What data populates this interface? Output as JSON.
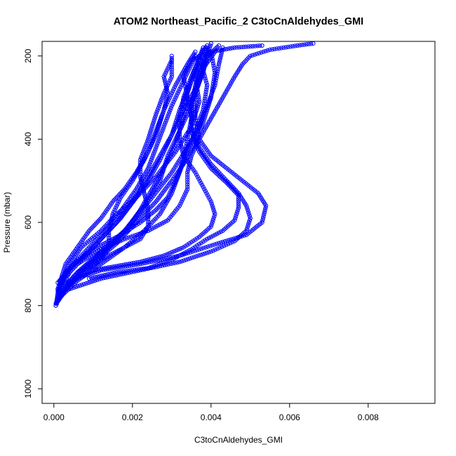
{
  "chart_data": {
    "type": "scatter",
    "title": "ATOM2 Northeast_Pacific_2 C3toCnAldehydes_GMI",
    "xlabel": "C3toCnAldehydes_GMI",
    "ylabel": "Pressure (mbar)",
    "xlim": [
      -0.0003,
      0.0097
    ],
    "ylim": [
      1035,
      165
    ],
    "y_reversed": true,
    "grid": false,
    "legend": "none",
    "marker": "open-circle",
    "color": "#0000ff",
    "xticks": [
      0.0,
      0.002,
      0.004,
      0.006,
      0.008
    ],
    "xtick_labels": [
      "0.000",
      "0.002",
      "0.004",
      "0.006",
      "0.008"
    ],
    "yticks": [
      200,
      400,
      600,
      800,
      1000
    ],
    "ytick_labels": [
      "200",
      "400",
      "600",
      "800",
      "1000"
    ],
    "series": [
      {
        "points": [
          [
            5e-05,
            800
          ],
          [
            0.0002,
            770
          ],
          [
            0.0006,
            720
          ],
          [
            0.0012,
            670
          ],
          [
            0.0018,
            620
          ],
          [
            0.0023,
            560
          ],
          [
            0.0027,
            500
          ],
          [
            0.0029,
            440
          ],
          [
            0.0031,
            400
          ],
          [
            0.0034,
            340
          ],
          [
            0.0036,
            290
          ],
          [
            0.0038,
            240
          ],
          [
            0.0039,
            200
          ],
          [
            0.004,
            170
          ]
        ]
      },
      {
        "points": [
          [
            5e-05,
            795
          ],
          [
            0.0003,
            760
          ],
          [
            0.0008,
            710
          ],
          [
            0.0014,
            660
          ],
          [
            0.002,
            600
          ],
          [
            0.0025,
            540
          ],
          [
            0.003,
            480
          ],
          [
            0.0034,
            420
          ],
          [
            0.0037,
            370
          ],
          [
            0.0039,
            320
          ],
          [
            0.0041,
            270
          ],
          [
            0.0042,
            220
          ],
          [
            0.0043,
            180
          ]
        ]
      },
      {
        "points": [
          [
            0.0001,
            790
          ],
          [
            0.0004,
            750
          ],
          [
            0.001,
            700
          ],
          [
            0.0016,
            650
          ],
          [
            0.0021,
            600
          ],
          [
            0.0026,
            550
          ],
          [
            0.003,
            500
          ],
          [
            0.0033,
            460
          ],
          [
            0.0036,
            410
          ],
          [
            0.0038,
            360
          ],
          [
            0.004,
            300
          ],
          [
            0.0041,
            240
          ],
          [
            0.004,
            190
          ]
        ]
      },
      {
        "points": [
          [
            0.0001,
            785
          ],
          [
            0.0006,
            740
          ],
          [
            0.0012,
            700
          ],
          [
            0.0018,
            660
          ],
          [
            0.0023,
            620
          ],
          [
            0.0027,
            580
          ],
          [
            0.003,
            530
          ],
          [
            0.0032,
            480
          ],
          [
            0.0034,
            430
          ],
          [
            0.0036,
            380
          ],
          [
            0.0038,
            330
          ],
          [
            0.0039,
            270
          ],
          [
            0.0037,
            200
          ]
        ]
      },
      {
        "points": [
          [
            0.0001,
            780
          ],
          [
            0.0005,
            730
          ],
          [
            0.001,
            690
          ],
          [
            0.0015,
            650
          ],
          [
            0.0019,
            610
          ],
          [
            0.0022,
            570
          ],
          [
            0.0025,
            520
          ],
          [
            0.0028,
            470
          ],
          [
            0.0031,
            410
          ],
          [
            0.0033,
            350
          ],
          [
            0.0034,
            290
          ],
          [
            0.0036,
            230
          ],
          [
            0.0038,
            180
          ]
        ]
      },
      {
        "points": [
          [
            0.0001,
            775
          ],
          [
            0.0004,
            720
          ],
          [
            0.0008,
            680
          ],
          [
            0.0012,
            640
          ],
          [
            0.0016,
            600
          ],
          [
            0.002,
            550
          ],
          [
            0.0024,
            500
          ],
          [
            0.0027,
            450
          ],
          [
            0.003,
            390
          ],
          [
            0.0032,
            330
          ],
          [
            0.0035,
            260
          ],
          [
            0.0038,
            210
          ],
          [
            0.0042,
            175
          ]
        ]
      },
      {
        "points": [
          [
            0.0001,
            770
          ],
          [
            0.0003,
            720
          ],
          [
            0.0007,
            680
          ],
          [
            0.0011,
            640
          ],
          [
            0.0015,
            600
          ],
          [
            0.0018,
            560
          ],
          [
            0.0021,
            520
          ],
          [
            0.0024,
            470
          ],
          [
            0.0026,
            420
          ],
          [
            0.0028,
            370
          ],
          [
            0.003,
            320
          ],
          [
            0.0033,
            260
          ],
          [
            0.0036,
            200
          ]
        ]
      },
      {
        "points": [
          [
            0.0001,
            765
          ],
          [
            0.0004,
            710
          ],
          [
            0.0009,
            670
          ],
          [
            0.0013,
            630
          ],
          [
            0.0017,
            590
          ],
          [
            0.0021,
            540
          ],
          [
            0.0024,
            490
          ],
          [
            0.0027,
            440
          ],
          [
            0.003,
            390
          ],
          [
            0.0033,
            330
          ],
          [
            0.0036,
            280
          ],
          [
            0.0038,
            220
          ],
          [
            0.0039,
            180
          ]
        ]
      },
      {
        "points": [
          [
            0.0001,
            760
          ],
          [
            0.0003,
            700
          ],
          [
            0.0006,
            660
          ],
          [
            0.0009,
            620
          ],
          [
            0.0012,
            590
          ],
          [
            0.0015,
            550
          ],
          [
            0.0018,
            520
          ],
          [
            0.0021,
            480
          ],
          [
            0.0024,
            430
          ],
          [
            0.0026,
            380
          ],
          [
            0.0028,
            330
          ],
          [
            0.0031,
            270
          ],
          [
            0.0034,
            220
          ],
          [
            0.0036,
            190
          ]
        ]
      },
      {
        "points": [
          [
            0.0001,
            760
          ],
          [
            0.0004,
            740
          ],
          [
            0.0012,
            715
          ],
          [
            0.0022,
            700
          ],
          [
            0.0032,
            680
          ],
          [
            0.0042,
            650
          ],
          [
            0.0049,
            630
          ],
          [
            0.0053,
            600
          ],
          [
            0.0054,
            560
          ],
          [
            0.0052,
            530
          ],
          [
            0.0048,
            500
          ],
          [
            0.0044,
            470
          ],
          [
            0.004,
            440
          ],
          [
            0.0037,
            400
          ],
          [
            0.0036,
            350
          ],
          [
            0.0036,
            290
          ],
          [
            0.0038,
            230
          ],
          [
            0.0041,
            190
          ]
        ]
      },
      {
        "points": [
          [
            0.0004,
            760
          ],
          [
            0.0012,
            735
          ],
          [
            0.0022,
            715
          ],
          [
            0.0032,
            695
          ],
          [
            0.004,
            670
          ],
          [
            0.0046,
            645
          ],
          [
            0.0049,
            620
          ],
          [
            0.005,
            590
          ],
          [
            0.0049,
            560
          ],
          [
            0.0047,
            530
          ],
          [
            0.0044,
            500
          ],
          [
            0.004,
            460
          ],
          [
            0.0037,
            420
          ],
          [
            0.0035,
            370
          ],
          [
            0.0035,
            310
          ],
          [
            0.0037,
            260
          ],
          [
            0.0039,
            210
          ]
        ]
      },
      {
        "points": [
          [
            0.0009,
            735
          ],
          [
            0.0016,
            720
          ],
          [
            0.0024,
            710
          ],
          [
            0.003,
            690
          ],
          [
            0.0035,
            665
          ],
          [
            0.0039,
            640
          ],
          [
            0.0043,
            620
          ],
          [
            0.0046,
            595
          ],
          [
            0.0047,
            565
          ],
          [
            0.0047,
            535
          ],
          [
            0.0044,
            505
          ],
          [
            0.004,
            470
          ],
          [
            0.0037,
            430
          ],
          [
            0.0035,
            380
          ],
          [
            0.0035,
            320
          ],
          [
            0.0036,
            270
          ],
          [
            0.0038,
            220
          ]
        ]
      },
      {
        "points": [
          [
            0.001,
            715
          ],
          [
            0.0016,
            705
          ],
          [
            0.0022,
            695
          ],
          [
            0.0028,
            680
          ],
          [
            0.0033,
            660
          ],
          [
            0.0037,
            635
          ],
          [
            0.004,
            610
          ],
          [
            0.0041,
            580
          ],
          [
            0.004,
            550
          ],
          [
            0.0038,
            515
          ],
          [
            0.0036,
            480
          ],
          [
            0.0033,
            440
          ],
          [
            0.0032,
            400
          ],
          [
            0.0032,
            350
          ],
          [
            0.0033,
            300
          ],
          [
            0.0035,
            250
          ],
          [
            0.0037,
            205
          ]
        ]
      },
      {
        "points": [
          [
            0.0006,
            720
          ],
          [
            0.0012,
            690
          ],
          [
            0.0018,
            660
          ],
          [
            0.0022,
            640
          ],
          [
            0.0024,
            610
          ],
          [
            0.0024,
            570
          ],
          [
            0.0023,
            530
          ],
          [
            0.0022,
            490
          ],
          [
            0.0022,
            450
          ],
          [
            0.0024,
            400
          ],
          [
            0.0026,
            340
          ],
          [
            0.0028,
            290
          ],
          [
            0.003,
            250
          ],
          [
            0.003,
            200
          ]
        ]
      },
      {
        "points": [
          [
            0.0008,
            720
          ],
          [
            0.0012,
            690
          ],
          [
            0.0014,
            660
          ],
          [
            0.0014,
            620
          ],
          [
            0.0015,
            580
          ],
          [
            0.0017,
            540
          ],
          [
            0.002,
            500
          ],
          [
            0.0023,
            450
          ],
          [
            0.0026,
            390
          ],
          [
            0.0028,
            330
          ],
          [
            0.0029,
            290
          ],
          [
            0.0028,
            250
          ],
          [
            0.003,
            210
          ]
        ]
      },
      {
        "points": [
          [
            0.0001,
            745
          ],
          [
            0.0005,
            700
          ],
          [
            0.0011,
            660
          ],
          [
            0.0017,
            630
          ],
          [
            0.0022,
            600
          ],
          [
            0.0026,
            570
          ],
          [
            0.0029,
            540
          ],
          [
            0.0031,
            500
          ],
          [
            0.0033,
            450
          ],
          [
            0.0034,
            400
          ],
          [
            0.0035,
            350
          ],
          [
            0.0034,
            300
          ],
          [
            0.0033,
            250
          ],
          [
            0.0035,
            210
          ],
          [
            0.004,
            190
          ],
          [
            0.0046,
            180
          ],
          [
            0.0053,
            175
          ]
        ]
      },
      {
        "points": [
          [
            0.0002,
            740
          ],
          [
            0.0006,
            700
          ],
          [
            0.0012,
            665
          ],
          [
            0.0018,
            640
          ],
          [
            0.0024,
            620
          ],
          [
            0.0029,
            595
          ],
          [
            0.0032,
            560
          ],
          [
            0.0034,
            520
          ],
          [
            0.0034,
            480
          ],
          [
            0.0035,
            440
          ],
          [
            0.0037,
            400
          ],
          [
            0.004,
            350
          ],
          [
            0.0043,
            300
          ],
          [
            0.0046,
            250
          ],
          [
            0.0048,
            220
          ],
          [
            0.005,
            200
          ],
          [
            0.0055,
            185
          ],
          [
            0.0062,
            175
          ],
          [
            0.0066,
            170
          ]
        ]
      },
      {
        "points": [
          [
            5e-05,
            800
          ],
          [
            0.0001,
            770
          ],
          [
            0.0002,
            740
          ],
          [
            0.0004,
            700
          ],
          [
            0.0007,
            660
          ],
          [
            0.0012,
            620
          ],
          [
            0.0016,
            580
          ],
          [
            0.0021,
            540
          ],
          [
            0.0026,
            490
          ],
          [
            0.0031,
            430
          ],
          [
            0.0035,
            370
          ],
          [
            0.0037,
            310
          ],
          [
            0.0036,
            250
          ],
          [
            0.0037,
            200
          ],
          [
            0.0039,
            175
          ]
        ]
      }
    ]
  }
}
